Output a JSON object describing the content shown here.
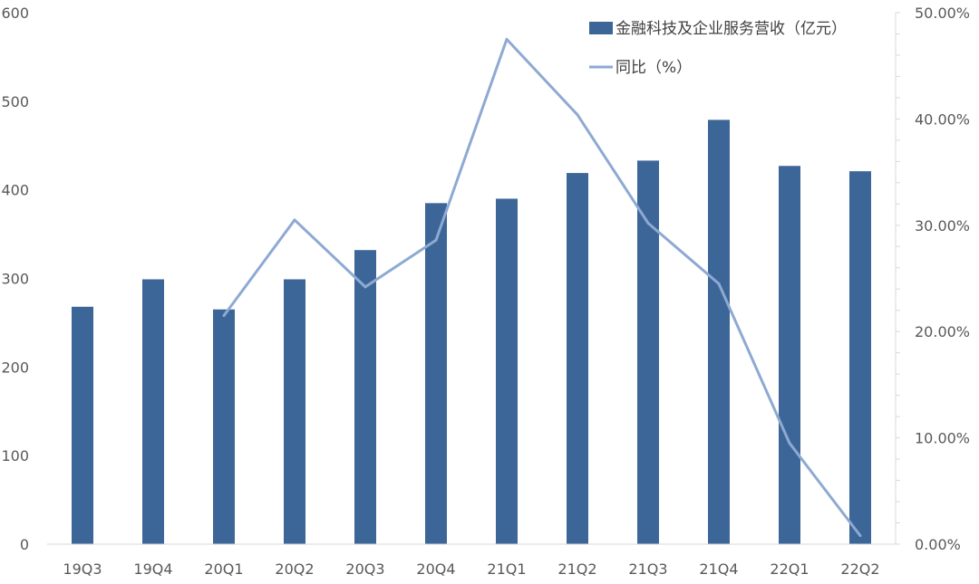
{
  "chart_data": {
    "type": "bar",
    "categories": [
      "19Q3",
      "19Q4",
      "20Q1",
      "20Q2",
      "20Q3",
      "20Q4",
      "21Q1",
      "21Q2",
      "21Q3",
      "21Q4",
      "22Q1",
      "22Q2"
    ],
    "series": [
      {
        "name": "金融科技及企业服务营收（亿元）",
        "type": "bar",
        "axis": "left",
        "color": "#3D6698",
        "values": [
          268,
          299,
          265,
          299,
          332,
          385,
          390,
          419,
          433,
          479,
          427,
          421
        ]
      },
      {
        "name": "同比（%）",
        "type": "line",
        "axis": "right",
        "color": "#8EA9D2",
        "values": [
          null,
          null,
          21.5,
          30.5,
          24.2,
          28.6,
          47.5,
          40.4,
          30.2,
          24.5,
          9.5,
          0.8
        ]
      }
    ],
    "y_left": {
      "min": 0,
      "max": 600,
      "ticks": [
        "0",
        "100",
        "200",
        "300",
        "400",
        "500",
        "600"
      ]
    },
    "y_right": {
      "min": 0,
      "max": 50,
      "ticks": [
        "0.00%",
        "10.00%",
        "20.00%",
        "30.00%",
        "40.00%",
        "50.00%"
      ]
    },
    "legend_position": "top-right",
    "grid": false
  }
}
